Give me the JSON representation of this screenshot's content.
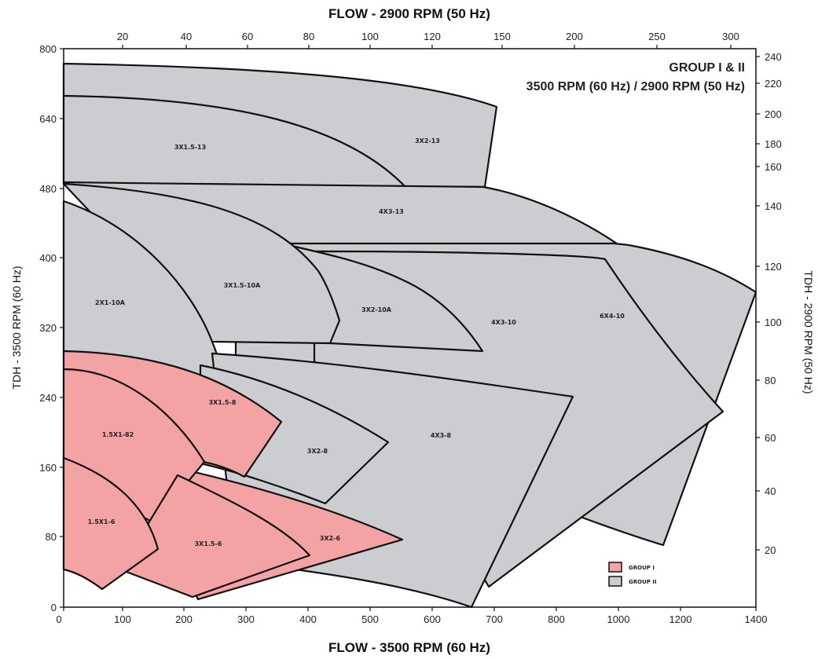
{
  "chart_data": {
    "type": "area",
    "xlabel_bottom": "FLOW - 3500 RPM (60 Hz)",
    "xlabel_top": "FLOW - 2900 RPM (50 Hz)",
    "ylabel_left": "TDH - 3500 RPM (60 Hz)",
    "ylabel_right": "TDH - 2900 RPM (50 Hz)",
    "title_lines": [
      "GROUP I & II",
      "3500 RPM (60 Hz) / 2900 RPM (50 Hz)"
    ],
    "xlim": [
      0,
      1400
    ],
    "ylim": [
      0,
      800
    ],
    "x_ticks_bottom": [
      "0",
      "100",
      "200",
      "300",
      "400",
      "500",
      "600",
      "700",
      "800",
      "1000",
      "1200",
      "1400"
    ],
    "x_ticks_top": [
      "20",
      "40",
      "60",
      "80",
      "100",
      "120",
      "150",
      "200",
      "250",
      "300"
    ],
    "y_ticks_left": [
      "0",
      "80",
      "160",
      "240",
      "320",
      "400",
      "480",
      "640",
      "800"
    ],
    "y_ticks_right": [
      "20",
      "40",
      "60",
      "80",
      "100",
      "120",
      "140",
      "160",
      "180",
      "200",
      "220",
      "240"
    ],
    "legend": [
      {
        "label": "GROUP I",
        "color": "#f4a3a5"
      },
      {
        "label": "GROUP II",
        "color": "#cccdd0"
      }
    ],
    "colors": {
      "group_1": "#f4a3a5",
      "group_2": "#cccdd0",
      "outline": "#111111"
    },
    "regions": [
      {
        "label": "3X1.5-13",
        "group": "II"
      },
      {
        "label": "3X2-13",
        "group": "II"
      },
      {
        "label": "4X3-13",
        "group": "II"
      },
      {
        "label": "2X1-10A",
        "group": "II"
      },
      {
        "label": "3X1.5-10A",
        "group": "II"
      },
      {
        "label": "3X2-10A",
        "group": "II"
      },
      {
        "label": "4X3-10",
        "group": "II"
      },
      {
        "label": "6X4-10",
        "group": "II"
      },
      {
        "label": "4X3-8",
        "group": "II"
      },
      {
        "label": "3X2-8",
        "group": "II"
      },
      {
        "label": "1.5X1-82",
        "group": "I"
      },
      {
        "label": "3X1.5-8",
        "group": "I"
      },
      {
        "label": "1.5X1-6",
        "group": "I"
      },
      {
        "label": "3X1.5-6",
        "group": "I"
      },
      {
        "label": "3X2-6",
        "group": "I"
      }
    ]
  }
}
